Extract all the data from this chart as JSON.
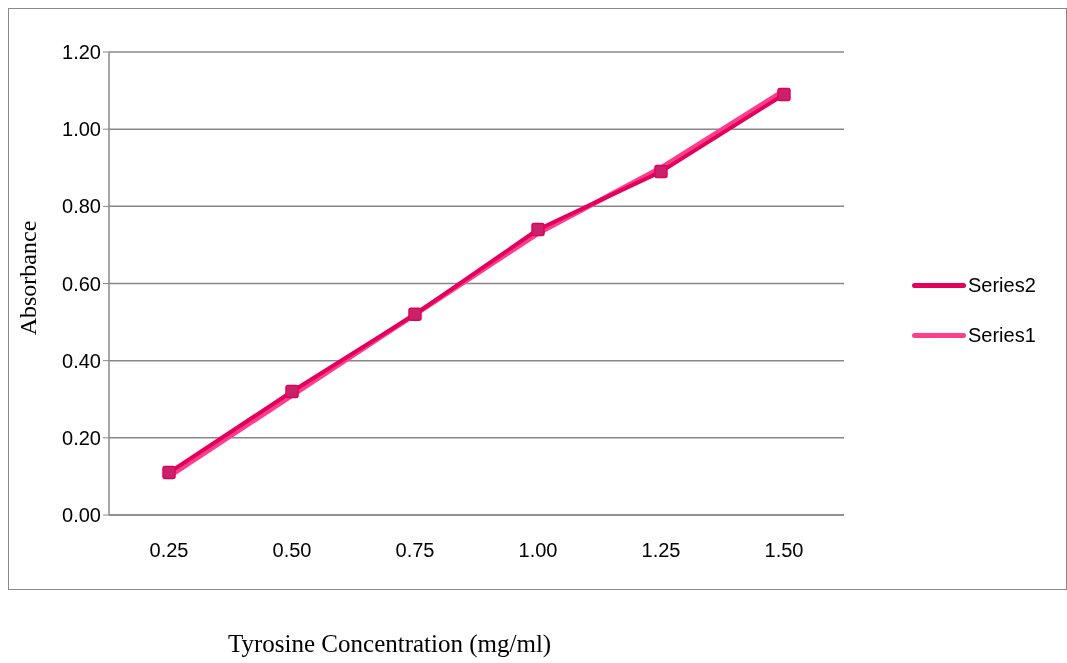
{
  "chart_data": {
    "type": "line",
    "xlabel": "Tyrosine Concentration (mg/ml)",
    "ylabel": "Absorbance",
    "categories": [
      "0.25",
      "0.50",
      "0.75",
      "1.00",
      "1.25",
      "1.50"
    ],
    "series": [
      {
        "name": "Series2",
        "color": "#e3005c",
        "marker": "square",
        "values": [
          0.11,
          0.32,
          0.52,
          0.74,
          0.89,
          1.09
        ]
      },
      {
        "name": "Series1",
        "color": "#ff3d8b",
        "marker": "none",
        "values": [
          0.1,
          0.31,
          0.52,
          0.73,
          0.9,
          1.1
        ]
      }
    ],
    "ylim": [
      0,
      1.2
    ],
    "yticks": [
      {
        "value": 0,
        "label": "0.00"
      },
      {
        "value": 0.2,
        "label": "0.20"
      },
      {
        "value": 0.4,
        "label": "0.40"
      },
      {
        "value": 0.6,
        "label": "0.60"
      },
      {
        "value": 0.8,
        "label": "0.80"
      },
      {
        "value": 1.0,
        "label": "1.00"
      },
      {
        "value": 1.2,
        "label": "1.20"
      }
    ],
    "grid": "y",
    "legend": "right"
  }
}
